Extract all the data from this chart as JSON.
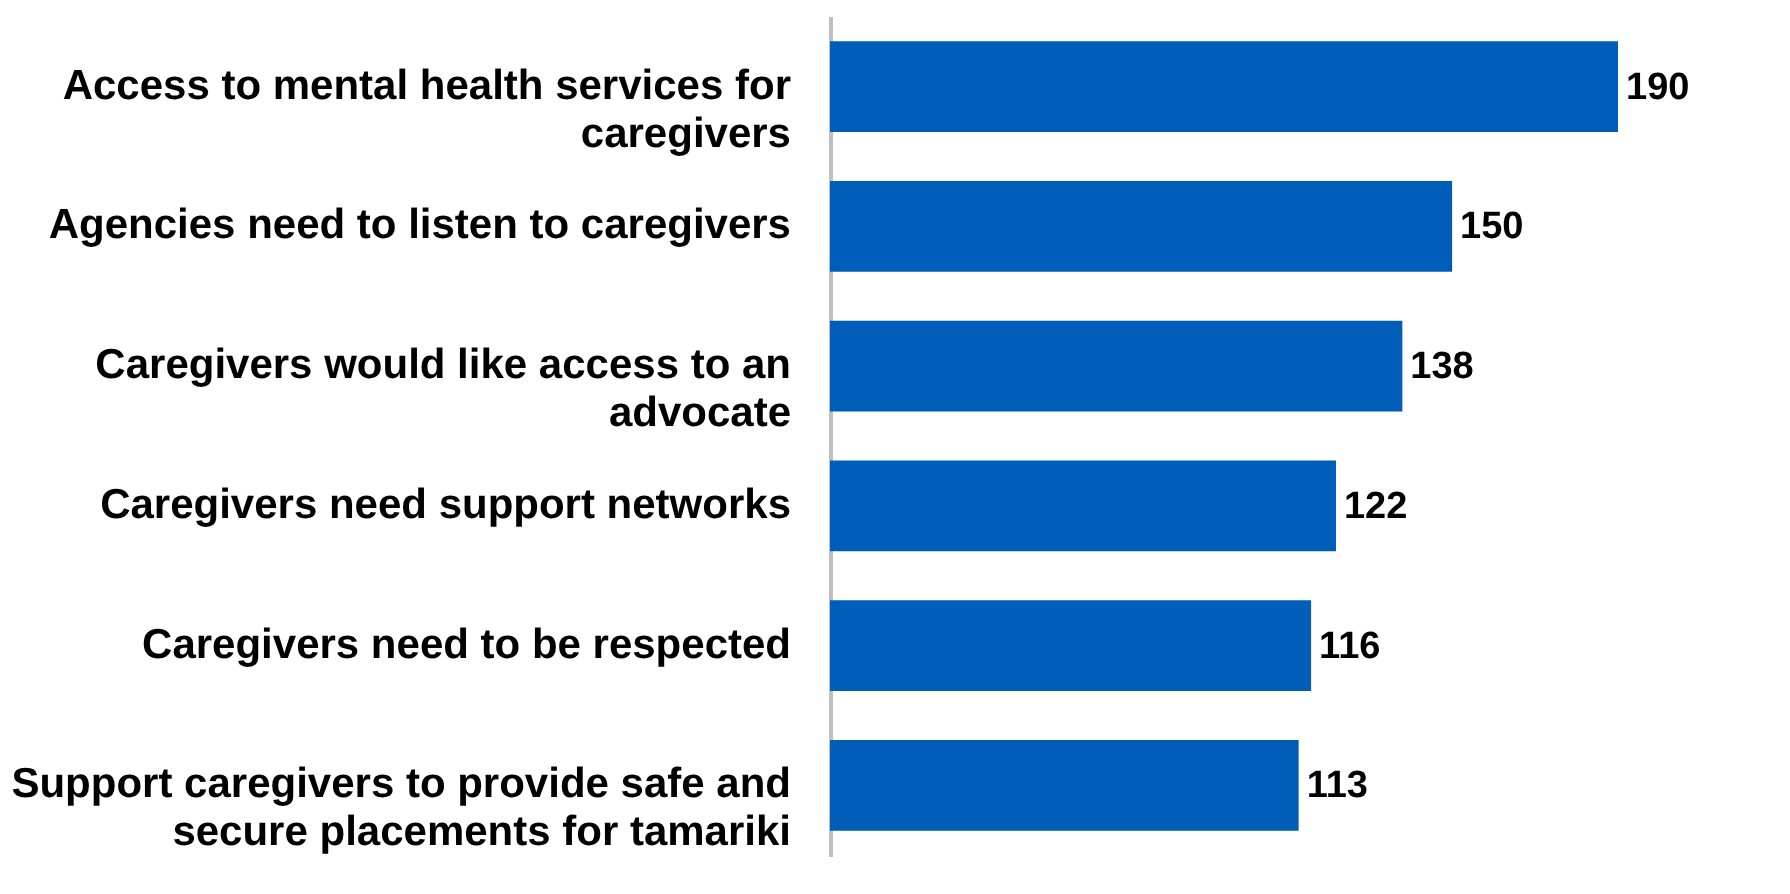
{
  "chart_data": {
    "type": "bar",
    "orientation": "horizontal",
    "categories": [
      "Access to mental health services for caregivers",
      "Agencies need to listen to caregivers",
      "Caregivers would like access to an advocate",
      "Caregivers need support networks",
      "Caregivers need to be respected",
      "Support caregivers to provide safe and secure placements for tamariki"
    ],
    "values": [
      190,
      150,
      138,
      122,
      116,
      113
    ],
    "color": "#005eb8",
    "data_labels": true,
    "xlim": [
      0,
      190
    ]
  }
}
